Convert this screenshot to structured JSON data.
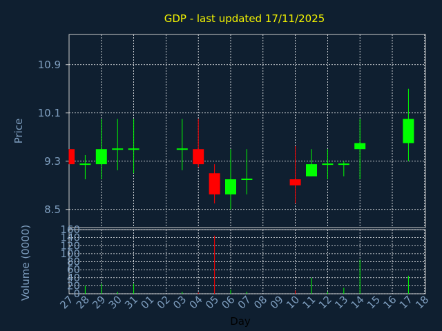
{
  "chart_data": {
    "type": "candlestick",
    "title": "GDP - last updated 17/11/2025",
    "ylabel_price": "Price",
    "ylabel_volume": "Volume (0000)",
    "xlabel": "Day",
    "days": [
      "27",
      "28",
      "29",
      "30",
      "31",
      "01",
      "02",
      "03",
      "04",
      "05",
      "06",
      "07",
      "08",
      "09",
      "10",
      "11",
      "12",
      "13",
      "14",
      "15",
      "16",
      "17",
      "18"
    ],
    "price_ticks": [
      8.5,
      9.3,
      10.1,
      10.9
    ],
    "price_tick_labels": [
      "8.5",
      "9.3",
      "10.1",
      "10.9"
    ],
    "price_ylim": [
      8.2,
      11.4
    ],
    "volume_ticks": [
      0,
      20,
      40,
      60,
      80,
      100,
      120,
      140,
      160
    ],
    "volume_tick_labels": [
      "0",
      "20",
      "40",
      "60",
      "80",
      "100",
      "120",
      "140",
      "160"
    ],
    "volume_ylim": [
      0,
      160
    ],
    "colors": {
      "up": "#00ff00",
      "down": "#ff0000",
      "background": "#0f1f30",
      "grid": "#ffffff"
    },
    "candles": [
      {
        "day": "27",
        "x": 0,
        "open": 9.5,
        "close": 9.25,
        "high": 9.5,
        "low": 9.25,
        "volume": 0
      },
      {
        "day": "28",
        "x": 1,
        "open": 9.25,
        "close": 9.25,
        "high": 9.4,
        "low": 9.0,
        "volume": 20
      },
      {
        "day": "29",
        "x": 2,
        "open": 9.25,
        "close": 9.5,
        "high": 10.0,
        "low": 9.0,
        "volume": 25
      },
      {
        "day": "30",
        "x": 3,
        "open": 9.5,
        "close": 9.5,
        "high": 10.0,
        "low": 9.15,
        "volume": 5
      },
      {
        "day": "31",
        "x": 4,
        "open": 9.5,
        "close": 9.5,
        "high": 10.0,
        "low": 9.1,
        "volume": 25
      },
      {
        "day": "03",
        "x": 7,
        "open": 9.5,
        "close": 9.5,
        "high": 10.0,
        "low": 9.15,
        "volume": 5
      },
      {
        "day": "04",
        "x": 8,
        "open": 9.5,
        "close": 9.25,
        "high": 10.0,
        "low": 9.2,
        "volume": 3
      },
      {
        "day": "05",
        "x": 9,
        "open": 9.1,
        "close": 8.75,
        "high": 9.25,
        "low": 8.6,
        "volume": 145
      },
      {
        "day": "06",
        "x": 10,
        "open": 8.75,
        "close": 9.0,
        "high": 9.5,
        "low": 8.5,
        "volume": 10
      },
      {
        "day": "07",
        "x": 11,
        "open": 9.0,
        "close": 9.0,
        "high": 9.5,
        "low": 8.75,
        "volume": 5
      },
      {
        "day": "10",
        "x": 14,
        "open": 9.0,
        "close": 8.9,
        "high": 9.55,
        "low": 8.6,
        "volume": 8
      },
      {
        "day": "11",
        "x": 15,
        "open": 9.05,
        "close": 9.25,
        "high": 9.5,
        "low": 9.05,
        "volume": 40
      },
      {
        "day": "12",
        "x": 16,
        "open": 9.25,
        "close": 9.25,
        "high": 9.5,
        "low": 9.0,
        "volume": 5
      },
      {
        "day": "13",
        "x": 17,
        "open": 9.25,
        "close": 9.25,
        "high": 9.3,
        "low": 9.05,
        "volume": 15
      },
      {
        "day": "14",
        "x": 18,
        "open": 9.5,
        "close": 9.6,
        "high": 10.0,
        "low": 9.0,
        "volume": 85
      },
      {
        "day": "17",
        "x": 21,
        "open": 9.6,
        "close": 10.0,
        "high": 10.5,
        "low": 9.3,
        "volume": 45
      }
    ]
  }
}
